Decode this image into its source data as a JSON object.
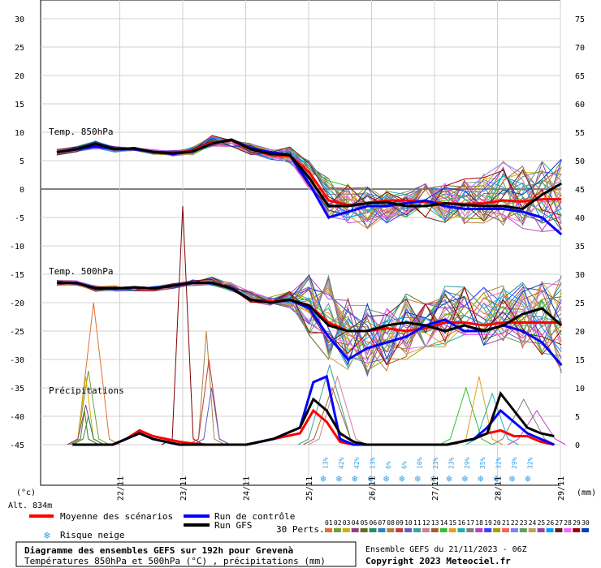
{
  "chart_data": {
    "type": "line",
    "title": "Diagramme des ensembles GEFS sur 192h pour Grevenà",
    "subtitle": "Températures 850hPa et 500hPa (°C) , précipitations (mm)",
    "run_info": "Ensemble GEFS du 21/11/2023 - 06Z",
    "copyright": "Copyright 2023 Meteociel.fr",
    "ylabel_left": "(°c)",
    "ylabel_right": "(mm)",
    "altitude": "Alt. 834m",
    "ylim_left": [
      -45,
      30
    ],
    "ylim_right": [
      0,
      75
    ],
    "left_ticks": [
      30,
      25,
      20,
      15,
      10,
      5,
      0,
      -5,
      -10,
      -15,
      -20,
      -25,
      -30,
      -35,
      -40,
      -45
    ],
    "right_ticks": [
      75,
      70,
      65,
      60,
      55,
      50,
      45,
      40,
      35,
      30,
      25,
      20,
      15,
      10,
      5,
      0
    ],
    "x_labels": [
      "22/11",
      "23/11",
      "24/11",
      "25/11",
      "26/11",
      "27/11",
      "28/11",
      "29/11"
    ],
    "grid": true,
    "section_labels": {
      "t850": "Temp. 850hPa",
      "t500": "Temp. 500hPa",
      "precip": "Précipitations"
    },
    "legend": {
      "mean": "Moyenne des scénarios",
      "control": "Run de contrôle",
      "gfs": "Run GFS",
      "snow": "Risque neige",
      "perts": "30 Perts."
    },
    "member_numbers": [
      "01",
      "02",
      "03",
      "04",
      "05",
      "06",
      "07",
      "08",
      "09",
      "10",
      "11",
      "12",
      "13",
      "14",
      "15",
      "16",
      "17",
      "18",
      "19",
      "20",
      "21",
      "22",
      "23",
      "24",
      "25",
      "26",
      "27",
      "28",
      "29",
      "30"
    ],
    "member_colors": [
      "#e07030",
      "#70a030",
      "#d0b000",
      "#904080",
      "#607020",
      "#209060",
      "#3080c0",
      "#b08040",
      "#c04040",
      "#6060c0",
      "#40a0a0",
      "#d08090",
      "#a06030",
      "#30c030",
      "#e0a020",
      "#20b0b0",
      "#808080",
      "#c040c0",
      "#4040ff",
      "#a0a000",
      "#ff6060",
      "#8080ff",
      "#60a060",
      "#c0a060",
      "#a040a0",
      "#00a0ff",
      "#602020",
      "#ff60ff",
      "#a00000",
      "#0040c0"
    ],
    "snow_risk": [
      {
        "hour": 102,
        "pct": "13%"
      },
      {
        "hour": 108,
        "pct": "42%"
      },
      {
        "hour": 114,
        "pct": "42%"
      },
      {
        "hour": 120,
        "pct": "13%"
      },
      {
        "hour": 126,
        "pct": "6%"
      },
      {
        "hour": 132,
        "pct": "6%"
      },
      {
        "hour": 138,
        "pct": "10%"
      },
      {
        "hour": 144,
        "pct": "23%"
      },
      {
        "hour": 150,
        "pct": "23%"
      },
      {
        "hour": 156,
        "pct": "29%"
      },
      {
        "hour": 162,
        "pct": "35%"
      },
      {
        "hour": 168,
        "pct": "32%"
      },
      {
        "hour": 174,
        "pct": "29%"
      },
      {
        "hour": 180,
        "pct": "32%"
      }
    ],
    "x_hours": [
      0,
      6,
      12,
      18,
      24,
      30,
      36,
      42,
      48,
      54,
      60,
      66,
      72,
      78,
      84,
      90,
      96,
      102,
      108,
      114,
      120,
      126,
      132,
      138,
      144,
      150,
      156,
      162,
      168,
      174,
      180,
      186,
      192
    ],
    "series": [
      {
        "name": "Moyenne des scénarios",
        "color": "#ff0000",
        "t850": [
          6.5,
          7,
          7.8,
          7,
          7.2,
          6.5,
          6.3,
          6.8,
          8.2,
          8.5,
          7,
          6,
          5.8,
          3,
          -2,
          -2.8,
          -2.5,
          -2,
          -2,
          -2.3,
          -2.5,
          -2.6,
          -2.5,
          -2,
          -2.2,
          -1.8,
          -1.8
        ],
        "t500": [
          -16.5,
          -16.5,
          -17.5,
          -17.5,
          -17.3,
          -17.5,
          -17,
          -16.5,
          -16.5,
          -17.5,
          -19.5,
          -19.8,
          -19.5,
          -20.5,
          -23.5,
          -25,
          -25,
          -24.5,
          -25,
          -24.5,
          -23.5,
          -23.5,
          -24,
          -23.5,
          -23.5,
          -23.5,
          -23.5
        ],
        "precip": [
          0,
          0,
          0,
          0,
          1,
          2.5,
          1.5,
          1,
          0.5,
          0.2,
          0,
          0,
          0,
          0,
          0.5,
          1,
          1.5,
          2,
          6,
          4,
          0.5,
          0,
          0,
          0,
          0,
          0,
          0,
          0,
          0,
          0.5,
          1,
          2,
          2.5,
          1.5,
          1.5,
          0.5,
          0
        ]
      },
      {
        "name": "Run de contrôle",
        "color": "#0000ff",
        "t850": [
          6.5,
          7,
          7.5,
          7,
          7,
          6.5,
          6.2,
          6.6,
          8,
          8.7,
          7.2,
          6.5,
          6,
          1,
          -5,
          -4,
          -3,
          -3,
          -2.5,
          -2,
          -3,
          -3.5,
          -3.5,
          -3.5,
          -4,
          -5,
          -8
        ],
        "t500": [
          -16.5,
          -16.5,
          -17.5,
          -17.5,
          -17.3,
          -17.5,
          -17,
          -16.5,
          -16.5,
          -17.5,
          -19.5,
          -20,
          -19.5,
          -21,
          -26,
          -30,
          -28,
          -27,
          -26,
          -24,
          -23,
          -25,
          -25,
          -24,
          -25,
          -27,
          -31
        ],
        "precip": [
          0,
          0,
          0,
          0,
          1,
          2,
          1,
          0.5,
          0,
          0,
          0,
          0,
          0,
          0,
          0.5,
          1,
          2,
          3,
          11,
          12,
          1,
          0,
          0,
          0,
          0,
          0,
          0,
          0,
          0,
          0.5,
          1,
          3,
          6,
          4,
          2,
          1,
          0
        ]
      },
      {
        "name": "Run GFS",
        "color": "#000000",
        "t850": [
          6.5,
          7,
          8,
          7,
          7.2,
          6.5,
          6.3,
          6.6,
          8,
          8.7,
          7,
          6.2,
          6,
          2,
          -3,
          -3,
          -2.5,
          -2.3,
          -3,
          -3,
          -2.5,
          -2.8,
          -3,
          -3,
          -3.5,
          -1,
          1
        ],
        "t500": [
          -16.5,
          -16.5,
          -17.5,
          -17.5,
          -17.3,
          -17.5,
          -17,
          -16.5,
          -16.5,
          -17.5,
          -19.5,
          -20,
          -19.5,
          -20.5,
          -24,
          -25,
          -25,
          -24,
          -23.5,
          -24,
          -25,
          -24,
          -25,
          -24,
          -22,
          -21,
          -24
        ],
        "precip": [
          0,
          0,
          0,
          0,
          1,
          2,
          1,
          0.5,
          0,
          0,
          0,
          0,
          0,
          0,
          0.5,
          1,
          2,
          3,
          8,
          6,
          2,
          0.5,
          0,
          0,
          0,
          0,
          0,
          0,
          0,
          0.5,
          1,
          2,
          9,
          6,
          3,
          2,
          1.5
        ]
      }
    ],
    "members_t850_range": [
      [
        6,
        7
      ],
      [
        6.5,
        7.5
      ],
      [
        7,
        8.5
      ],
      [
        6.5,
        7.5
      ],
      [
        6.5,
        7.8
      ],
      [
        6,
        7
      ],
      [
        5.8,
        6.8
      ],
      [
        6,
        7.5
      ],
      [
        7.5,
        9.5
      ],
      [
        7.5,
        9
      ],
      [
        6,
        8
      ],
      [
        5,
        7
      ],
      [
        4.5,
        7.5
      ],
      [
        0,
        5
      ],
      [
        -5.5,
        2
      ],
      [
        -6,
        1
      ],
      [
        -7,
        0.5
      ],
      [
        -6,
        0
      ],
      [
        -5,
        -0.5
      ],
      [
        -5,
        1
      ],
      [
        -6,
        1
      ],
      [
        -6.5,
        2
      ],
      [
        -6,
        3
      ],
      [
        -6.5,
        5
      ],
      [
        -7,
        4.5
      ],
      [
        -7.5,
        5
      ],
      [
        -8,
        5.5
      ]
    ],
    "members_t500_range": [
      [
        -17,
        -16
      ],
      [
        -17,
        -16
      ],
      [
        -18,
        -17
      ],
      [
        -18,
        -17
      ],
      [
        -18,
        -16.5
      ],
      [
        -18,
        -17
      ],
      [
        -17.5,
        -16.5
      ],
      [
        -17,
        -16
      ],
      [
        -17,
        -15.5
      ],
      [
        -18,
        -16.5
      ],
      [
        -20,
        -18
      ],
      [
        -20.5,
        -19
      ],
      [
        -21,
        -18
      ],
      [
        -27,
        -15
      ],
      [
        -30,
        -15
      ],
      [
        -32,
        -19
      ],
      [
        -33,
        -20
      ],
      [
        -32,
        -21
      ],
      [
        -30,
        -18
      ],
      [
        -28,
        -18
      ],
      [
        -28,
        -17
      ],
      [
        -27,
        -17
      ],
      [
        -28,
        -17
      ],
      [
        -27,
        -17
      ],
      [
        -28,
        -16
      ],
      [
        -30,
        -16
      ],
      [
        -33,
        -15
      ]
    ],
    "members_precip_peaks": [
      {
        "start": 8,
        "peak": 25,
        "end": 20
      },
      {
        "start": 8,
        "peak": 13,
        "end": 16
      },
      {
        "start": 8,
        "peak": 12,
        "end": 14
      },
      {
        "start": 8,
        "peak": 7,
        "end": 14
      },
      {
        "start": 9,
        "peak": 6,
        "end": 12
      },
      {
        "start": 10,
        "peak": 5,
        "end": 14
      },
      {
        "start": 44,
        "peak": 42,
        "end": 52
      },
      {
        "start": 54,
        "peak": 20,
        "end": 60
      },
      {
        "start": 54,
        "peak": 15,
        "end": 62
      },
      {
        "start": 56,
        "peak": 10,
        "end": 62
      },
      {
        "start": 96,
        "peak": 14,
        "end": 112
      },
      {
        "start": 100,
        "peak": 12,
        "end": 114
      },
      {
        "start": 98,
        "peak": 10,
        "end": 112
      },
      {
        "start": 150,
        "peak": 10,
        "end": 162
      },
      {
        "start": 156,
        "peak": 12,
        "end": 166
      },
      {
        "start": 160,
        "peak": 9,
        "end": 172
      },
      {
        "start": 170,
        "peak": 8,
        "end": 186
      },
      {
        "start": 176,
        "peak": 6,
        "end": 190
      }
    ]
  }
}
